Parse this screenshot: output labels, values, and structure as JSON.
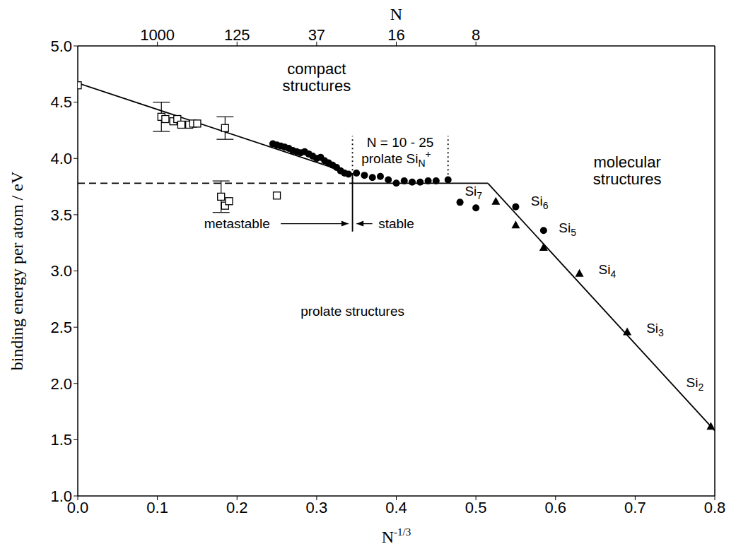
{
  "chart_data": {
    "type": "scatter",
    "xlabel": {
      "text": "N",
      "sup": "-1/3"
    },
    "ylabel": "binding energy per atom / eV",
    "top_xlabel": "N",
    "xlim": [
      0,
      0.8
    ],
    "xticks": [
      {
        "value": 0,
        "label": "0.0"
      },
      0.1,
      0.2,
      0.3,
      0.4,
      0.5,
      0.6,
      0.7,
      0.8
    ],
    "top_xticks": [
      {
        "value": 0.1,
        "label": "1000"
      },
      {
        "value": 0.2,
        "label": "125"
      },
      {
        "value": 0.3,
        "label": "37"
      },
      {
        "value": 0.4,
        "label": "16"
      },
      {
        "value": 0.5,
        "label": "8"
      }
    ],
    "ylim": [
      1,
      5
    ],
    "yticks": [
      {
        "value": 1,
        "label": "1.0"
      },
      1.5,
      {
        "value": 2,
        "label": "2.0"
      },
      2.5,
      {
        "value": 3,
        "label": "3.0"
      },
      3.5,
      {
        "value": 4,
        "label": "4.0"
      },
      4.5,
      {
        "value": 5,
        "label": "5.0"
      }
    ],
    "series": [
      {
        "type": "line",
        "line_style": "solid",
        "color": "#000000",
        "x": [
          0,
          0.345
        ],
        "y": [
          4.67,
          3.86
        ]
      },
      {
        "type": "line",
        "line_style": "dashed",
        "color": "#000000",
        "x": [
          0,
          0.345
        ],
        "y": [
          3.78,
          3.78
        ]
      },
      {
        "type": "line",
        "line_style": "solid",
        "color": "#000000",
        "x": [
          0.345,
          0.515
        ],
        "y": [
          3.78,
          3.78
        ]
      },
      {
        "type": "line",
        "line_style": "solid",
        "color": "#000000",
        "x": [
          0.515,
          0.8
        ],
        "y": [
          3.78,
          1.58
        ]
      },
      {
        "type": "line",
        "line_style": "solid",
        "color": "#000000",
        "x": [
          0.345,
          0.345
        ],
        "y": [
          3.35,
          3.87
        ]
      },
      {
        "type": "line",
        "line_style": "dotted",
        "color": "#000000",
        "x": [
          0.345,
          0.345
        ],
        "y": [
          3.78,
          4.2
        ]
      },
      {
        "type": "line",
        "line_style": "dotted",
        "color": "#000000",
        "x": [
          0.465,
          0.465
        ],
        "y": [
          3.78,
          4.2
        ]
      },
      {
        "type": "scatter",
        "marker": "square_open",
        "color": "#000000",
        "x": [
          0.0,
          0.105,
          0.11,
          0.12,
          0.125,
          0.13,
          0.14,
          0.145,
          0.15,
          0.185
        ],
        "y": [
          4.65,
          4.37,
          4.35,
          4.33,
          4.35,
          4.3,
          4.3,
          4.31,
          4.31,
          4.27
        ],
        "errors": [
          null,
          0.13,
          null,
          null,
          null,
          null,
          null,
          null,
          null,
          0.1
        ]
      },
      {
        "type": "scatter",
        "marker": "square_open",
        "color": "#000000",
        "x": [
          0.18,
          0.185,
          0.19,
          0.25
        ],
        "y": [
          3.66,
          3.58,
          3.62,
          3.67
        ],
        "errors": [
          0.14,
          null,
          null,
          null
        ]
      },
      {
        "type": "scatter",
        "marker": "circle",
        "color": "#000000",
        "x": [
          0.245,
          0.25,
          0.255,
          0.26,
          0.265,
          0.27,
          0.275,
          0.28,
          0.285,
          0.29,
          0.295,
          0.3,
          0.305,
          0.31,
          0.315,
          0.32,
          0.325,
          0.33,
          0.335,
          0.34,
          0.35,
          0.36,
          0.37,
          0.38,
          0.39,
          0.4,
          0.41,
          0.42,
          0.43,
          0.44,
          0.45,
          0.465,
          0.48,
          0.5,
          0.55,
          0.585
        ],
        "y": [
          4.13,
          4.12,
          4.11,
          4.1,
          4.09,
          4.07,
          4.06,
          4.05,
          4.06,
          4.04,
          4.02,
          4.0,
          4.01,
          3.98,
          3.96,
          3.94,
          3.92,
          3.89,
          3.87,
          3.86,
          3.87,
          3.85,
          3.83,
          3.84,
          3.81,
          3.78,
          3.8,
          3.79,
          3.79,
          3.8,
          3.8,
          3.81,
          3.61,
          3.56,
          3.57,
          3.36
        ]
      },
      {
        "type": "scatter",
        "marker": "triangle",
        "color": "#000000",
        "x": [
          0.525,
          0.55,
          0.585,
          0.63,
          0.69,
          0.795
        ],
        "y": [
          3.62,
          3.41,
          3.21,
          2.98,
          2.46,
          1.62
        ]
      }
    ],
    "annotations": [
      {
        "x": 0.3,
        "y": 4.75,
        "lines": [
          "compact",
          "structures"
        ]
      },
      {
        "x": 0.405,
        "y": 4.1,
        "text": "N = 10 - 25"
      },
      {
        "x": 0.4,
        "y": 3.96,
        "text": "prolate Si",
        "sub": "N",
        "sup": "+"
      },
      {
        "x": 0.2,
        "y": 3.38,
        "text": "metastable"
      },
      {
        "x": 0.4,
        "y": 3.38,
        "text": "stable"
      },
      {
        "x": 0.345,
        "y": 2.6,
        "text": "prolate structures"
      },
      {
        "x": 0.69,
        "y": 3.92,
        "lines": [
          "molecular",
          "structures"
        ]
      },
      {
        "x": 0.497,
        "y": 3.67,
        "text": "Si",
        "sub": "7"
      },
      {
        "x": 0.58,
        "y": 3.58,
        "text": "Si",
        "sub": "6"
      },
      {
        "x": 0.615,
        "y": 3.34,
        "text": "Si",
        "sub": "5"
      },
      {
        "x": 0.665,
        "y": 2.97,
        "text": "Si",
        "sub": "4"
      },
      {
        "x": 0.725,
        "y": 2.45,
        "text": "Si",
        "sub": "3"
      },
      {
        "x": 0.775,
        "y": 1.97,
        "text": "Si",
        "sub": "2"
      }
    ],
    "arrows": [
      {
        "from": [
          0.255,
          3.42
        ],
        "to": [
          0.34,
          3.42
        ]
      },
      {
        "from": [
          0.37,
          3.42
        ],
        "to": [
          0.35,
          3.42
        ]
      }
    ]
  }
}
